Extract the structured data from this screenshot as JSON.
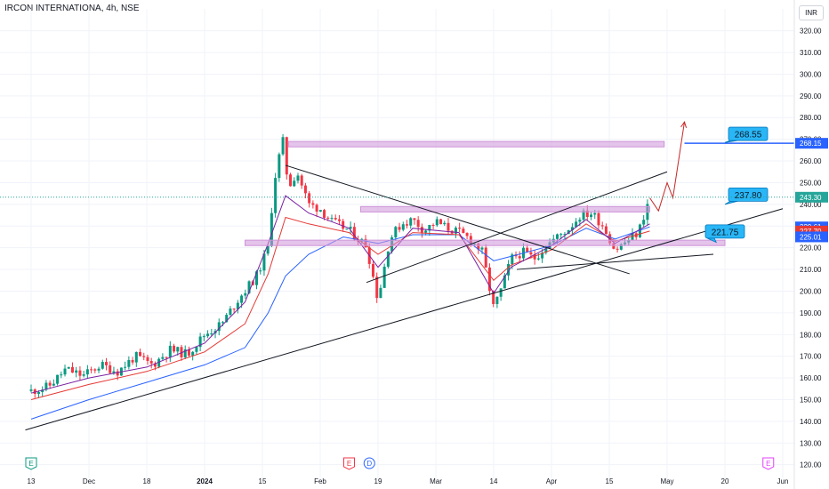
{
  "header": {
    "symbol": "IRCON INTERNATIONA, 4h, NSE",
    "currency": "INR"
  },
  "colors": {
    "up": "#089981",
    "down": "#f23645",
    "ma_fast": "#7b1fa2",
    "ma_mid": "#e53935",
    "ma_slow": "#2962ff",
    "zone": "#ce93d8",
    "callout": "#29b6f6",
    "price_last": "#26a69a",
    "target_line": "#2962ff",
    "trendline": "#131722"
  },
  "chart_data": {
    "type": "candlestick",
    "title": "IRCON INTERNATIONA, 4h, NSE",
    "ylim": [
      117,
      326
    ],
    "y_ticks": [
      120,
      130,
      140,
      150,
      160,
      170,
      180,
      190,
      200,
      210,
      220,
      230,
      240,
      250,
      260,
      270,
      280,
      290,
      300,
      310,
      320
    ],
    "x_ticks": [
      {
        "label": "13",
        "x": 0
      },
      {
        "label": "Dec",
        "x": 1
      },
      {
        "label": "18",
        "x": 2
      },
      {
        "label": "2024",
        "x": 3
      },
      {
        "label": "15",
        "x": 4
      },
      {
        "label": "Feb",
        "x": 5
      },
      {
        "label": "19",
        "x": 6
      },
      {
        "label": "Mar",
        "x": 7
      },
      {
        "label": "14",
        "x": 8
      },
      {
        "label": "Apr",
        "x": 9
      },
      {
        "label": "15",
        "x": 10
      },
      {
        "label": "May",
        "x": 11
      },
      {
        "label": "20",
        "x": 12
      },
      {
        "label": "Jun",
        "x": 13
      }
    ],
    "close_path": [
      [
        0,
        154
      ],
      [
        0.3,
        156
      ],
      [
        0.6,
        164
      ],
      [
        0.9,
        161
      ],
      [
        1.2,
        166
      ],
      [
        1.5,
        163
      ],
      [
        1.8,
        170
      ],
      [
        2.1,
        166
      ],
      [
        2.4,
        173
      ],
      [
        2.7,
        171
      ],
      [
        3.0,
        180
      ],
      [
        3.3,
        185
      ],
      [
        3.6,
        197
      ],
      [
        3.9,
        207
      ],
      [
        4.1,
        220
      ],
      [
        4.2,
        250
      ],
      [
        4.35,
        270
      ],
      [
        4.45,
        248
      ],
      [
        4.6,
        255
      ],
      [
        4.8,
        240
      ],
      [
        5.0,
        238
      ],
      [
        5.2,
        232
      ],
      [
        5.5,
        228
      ],
      [
        5.8,
        221
      ],
      [
        6.0,
        196
      ],
      [
        6.2,
        224
      ],
      [
        6.4,
        231
      ],
      [
        6.6,
        233
      ],
      [
        6.8,
        228
      ],
      [
        7.0,
        232
      ],
      [
        7.2,
        229
      ],
      [
        7.4,
        227
      ],
      [
        7.6,
        224
      ],
      [
        7.8,
        218
      ],
      [
        8.0,
        192
      ],
      [
        8.15,
        202
      ],
      [
        8.3,
        215
      ],
      [
        8.5,
        218
      ],
      [
        8.7,
        215
      ],
      [
        8.9,
        221
      ],
      [
        9.1,
        225
      ],
      [
        9.3,
        229
      ],
      [
        9.5,
        235
      ],
      [
        9.7,
        236
      ],
      [
        9.9,
        230
      ],
      [
        10.1,
        219
      ],
      [
        10.3,
        223
      ],
      [
        10.5,
        227
      ],
      [
        10.7,
        243
      ]
    ],
    "moving_averages": [
      {
        "key": "ma_slow",
        "points": [
          [
            0,
            141
          ],
          [
            1,
            150
          ],
          [
            2,
            158
          ],
          [
            3,
            166
          ],
          [
            3.7,
            174
          ],
          [
            4.1,
            190
          ],
          [
            4.4,
            207
          ],
          [
            4.8,
            217
          ],
          [
            5.4,
            225
          ],
          [
            6.0,
            222
          ],
          [
            6.6,
            226
          ],
          [
            7.4,
            226
          ],
          [
            8.0,
            214
          ],
          [
            8.3,
            216
          ],
          [
            9.0,
            221
          ],
          [
            9.6,
            229
          ],
          [
            10.1,
            224
          ],
          [
            10.7,
            229.6
          ]
        ]
      },
      {
        "key": "ma_mid",
        "points": [
          [
            0,
            150
          ],
          [
            1,
            157
          ],
          [
            2,
            163
          ],
          [
            3,
            172
          ],
          [
            3.7,
            185
          ],
          [
            4.1,
            208
          ],
          [
            4.4,
            234
          ],
          [
            4.8,
            231
          ],
          [
            5.5,
            227
          ],
          [
            6.0,
            217
          ],
          [
            6.6,
            227
          ],
          [
            7.4,
            226
          ],
          [
            8.0,
            205
          ],
          [
            8.3,
            212
          ],
          [
            9.0,
            219
          ],
          [
            9.6,
            231
          ],
          [
            10.1,
            223
          ],
          [
            10.7,
            227.7
          ]
        ]
      },
      {
        "key": "ma_fast",
        "points": [
          [
            0,
            153
          ],
          [
            1,
            160
          ],
          [
            2,
            165
          ],
          [
            3,
            176
          ],
          [
            3.7,
            195
          ],
          [
            4.1,
            222
          ],
          [
            4.4,
            244
          ],
          [
            4.8,
            236
          ],
          [
            5.5,
            229
          ],
          [
            6.0,
            211
          ],
          [
            6.6,
            229
          ],
          [
            7.4,
            227
          ],
          [
            8.0,
            199
          ],
          [
            8.3,
            211
          ],
          [
            9.0,
            221
          ],
          [
            9.6,
            233
          ],
          [
            10.1,
            222
          ],
          [
            10.7,
            231
          ]
        ]
      }
    ],
    "zones": [
      {
        "x0": 4.45,
        "x1": 10.95,
        "y0": 266.5,
        "y1": 269
      },
      {
        "x0": 5.7,
        "x1": 10.7,
        "y0": 236.5,
        "y1": 239
      },
      {
        "x0": 3.7,
        "x1": 12.0,
        "y0": 221,
        "y1": 223.5
      }
    ],
    "trendlines": [
      {
        "x0": -0.1,
        "y0": 136,
        "x1": 13.0,
        "y1": 238
      },
      {
        "x0": 4.4,
        "y0": 258,
        "x1": 10.35,
        "y1": 208
      },
      {
        "x0": 5.8,
        "y0": 204,
        "x1": 11.0,
        "y1": 255
      },
      {
        "x0": 8.4,
        "y0": 210,
        "x1": 11.8,
        "y1": 217
      }
    ],
    "projection": [
      [
        10.7,
        243
      ],
      [
        10.85,
        237
      ],
      [
        11.0,
        250
      ],
      [
        11.1,
        243
      ],
      [
        11.3,
        278
      ]
    ],
    "target_line": {
      "y": 268.15,
      "x0": 11.3
    },
    "callouts": [
      {
        "text": "268.55",
        "x": 12.4,
        "y": 272.5,
        "anchor_x": 12.0,
        "anchor_y": 268.5
      },
      {
        "text": "237.80",
        "x": 12.4,
        "y": 244.5,
        "anchor_x": 12.0,
        "anchor_y": 240
      },
      {
        "text": "221.75",
        "x": 12.0,
        "y": 227.5,
        "anchor_x": 11.85,
        "anchor_y": 222.5
      }
    ],
    "price_labels": [
      {
        "text": "268.15",
        "value": 268.15,
        "color": "#2962ff"
      },
      {
        "text": "243.30",
        "value": 243.3,
        "color": "#26a69a"
      },
      {
        "text": "229.61",
        "value": 229.61,
        "color": "#2962ff"
      },
      {
        "text": "227.70",
        "value": 227.7,
        "color": "#e53935"
      },
      {
        "text": "225.01",
        "value": 225.01,
        "color": "#2962ff"
      }
    ],
    "event_markers": [
      {
        "letter": "E",
        "x": 0,
        "color": "#089981"
      },
      {
        "letter": "E",
        "x": 5.5,
        "color": "#f23645"
      },
      {
        "letter": "D",
        "x": 5.85,
        "color": "#2962ff"
      },
      {
        "letter": "E",
        "x": 12.75,
        "color": "#e040fb"
      }
    ]
  }
}
